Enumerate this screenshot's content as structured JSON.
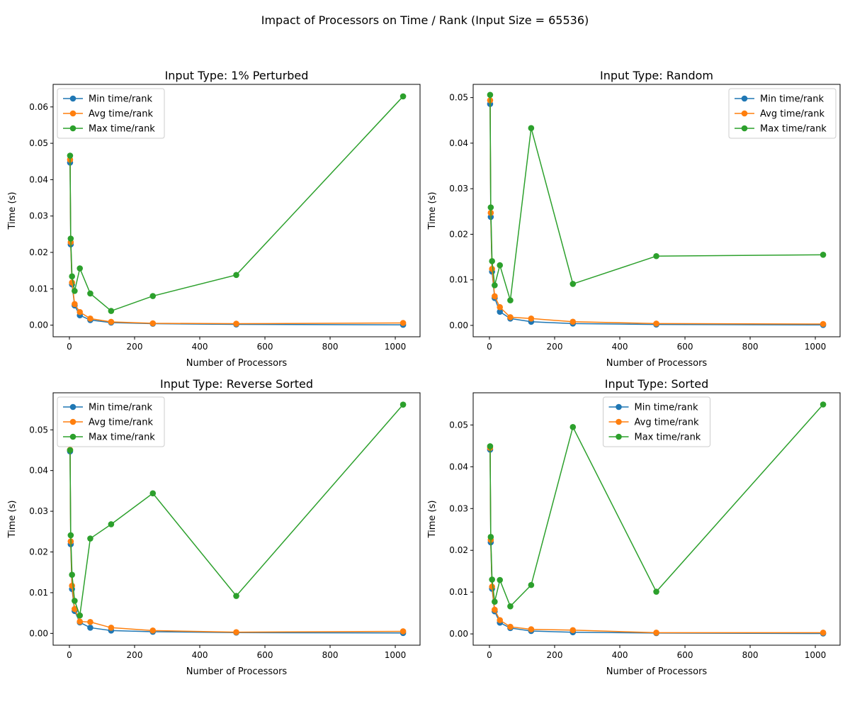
{
  "figure": {
    "suptitle": "Impact of Processors on Time / Rank (Input Size = 65536)"
  },
  "colors": {
    "min": "#1f77b4",
    "avg": "#ff7f0e",
    "max": "#2ca02c"
  },
  "chart_data": [
    {
      "type": "line",
      "title": "Input Type: 1% Perturbed",
      "xlabel": "Number of Processors",
      "ylabel": "Time (s)",
      "x": [
        2,
        4,
        8,
        16,
        32,
        64,
        128,
        256,
        512,
        1024
      ],
      "xlim": [
        -50,
        1076
      ],
      "ylim": [
        -0.0032,
        0.0662
      ],
      "xticks": [
        0,
        200,
        400,
        600,
        800,
        1000
      ],
      "yticks": [
        0.0,
        0.01,
        0.02,
        0.03,
        0.04,
        0.05,
        0.06
      ],
      "ytick_labels": [
        "0.00",
        "0.01",
        "0.02",
        "0.03",
        "0.04",
        "0.05",
        "0.06"
      ],
      "legend_position": "upper-left",
      "series": [
        {
          "name": "Min time/rank",
          "color": "#1f77b4",
          "values": [
            0.0447,
            0.0222,
            0.0112,
            0.0054,
            0.0027,
            0.0014,
            0.0007,
            0.0004,
            0.0002,
            0.0001
          ]
        },
        {
          "name": "Avg time/rank",
          "color": "#ff7f0e",
          "values": [
            0.0455,
            0.0228,
            0.0117,
            0.0058,
            0.0036,
            0.0018,
            0.0009,
            0.0005,
            0.0004,
            0.0006
          ]
        },
        {
          "name": "Max time/rank",
          "color": "#2ca02c",
          "values": [
            0.0466,
            0.0238,
            0.0134,
            0.0094,
            0.0156,
            0.0087,
            0.0039,
            0.008,
            0.0138,
            0.0629
          ]
        }
      ]
    },
    {
      "type": "line",
      "title": "Input Type: Random",
      "xlabel": "Number of Processors",
      "ylabel": "Time (s)",
      "x": [
        2,
        4,
        8,
        16,
        32,
        64,
        128,
        256,
        512,
        1024
      ],
      "xlim": [
        -50,
        1076
      ],
      "ylim": [
        -0.0025,
        0.0529
      ],
      "xticks": [
        0,
        200,
        400,
        600,
        800,
        1000
      ],
      "yticks": [
        0.0,
        0.01,
        0.02,
        0.03,
        0.04,
        0.05
      ],
      "ytick_labels": [
        "0.00",
        "0.01",
        "0.02",
        "0.03",
        "0.04",
        "0.05"
      ],
      "legend_position": "upper-right",
      "series": [
        {
          "name": "Min time/rank",
          "color": "#1f77b4",
          "values": [
            0.0486,
            0.0238,
            0.0118,
            0.006,
            0.003,
            0.0015,
            0.0008,
            0.0004,
            0.0002,
            0.0001
          ]
        },
        {
          "name": "Avg time/rank",
          "color": "#ff7f0e",
          "values": [
            0.0494,
            0.0247,
            0.0124,
            0.0064,
            0.004,
            0.0018,
            0.0015,
            0.0008,
            0.0004,
            0.0003
          ]
        },
        {
          "name": "Max time/rank",
          "color": "#2ca02c",
          "values": [
            0.0506,
            0.0259,
            0.0141,
            0.0088,
            0.0132,
            0.0055,
            0.0433,
            0.0091,
            0.0152,
            0.0155
          ]
        }
      ]
    },
    {
      "type": "line",
      "title": "Input Type: Reverse Sorted",
      "xlabel": "Number of Processors",
      "ylabel": "Time (s)",
      "x": [
        2,
        4,
        8,
        16,
        32,
        64,
        128,
        256,
        512,
        1024
      ],
      "xlim": [
        -50,
        1076
      ],
      "ylim": [
        -0.0029,
        0.0591
      ],
      "xticks": [
        0,
        200,
        400,
        600,
        800,
        1000
      ],
      "yticks": [
        0.0,
        0.01,
        0.02,
        0.03,
        0.04,
        0.05
      ],
      "ytick_labels": [
        "0.00",
        "0.01",
        "0.02",
        "0.03",
        "0.04",
        "0.05"
      ],
      "legend_position": "upper-left",
      "series": [
        {
          "name": "Min time/rank",
          "color": "#1f77b4",
          "values": [
            0.0447,
            0.0219,
            0.0109,
            0.0055,
            0.0027,
            0.0014,
            0.0007,
            0.0004,
            0.0002,
            0.0001
          ]
        },
        {
          "name": "Avg time/rank",
          "color": "#ff7f0e",
          "values": [
            0.0451,
            0.0226,
            0.0117,
            0.006,
            0.0029,
            0.0028,
            0.0014,
            0.0007,
            0.0003,
            0.0005
          ]
        },
        {
          "name": "Max time/rank",
          "color": "#2ca02c",
          "values": [
            0.045,
            0.0241,
            0.0144,
            0.008,
            0.0044,
            0.0233,
            0.0268,
            0.0344,
            0.0092,
            0.0562
          ]
        }
      ]
    },
    {
      "type": "line",
      "title": "Input Type: Sorted",
      "xlabel": "Number of Processors",
      "ylabel": "Time (s)",
      "x": [
        2,
        4,
        8,
        16,
        32,
        64,
        128,
        256,
        512,
        1024
      ],
      "xlim": [
        -50,
        1076
      ],
      "ylim": [
        -0.0027,
        0.0577
      ],
      "xticks": [
        0,
        200,
        400,
        600,
        800,
        1000
      ],
      "yticks": [
        0.0,
        0.01,
        0.02,
        0.03,
        0.04,
        0.05
      ],
      "ytick_labels": [
        "0.00",
        "0.01",
        "0.02",
        "0.03",
        "0.04",
        "0.05"
      ],
      "legend_position": "upper-center",
      "series": [
        {
          "name": "Min time/rank",
          "color": "#1f77b4",
          "values": [
            0.0441,
            0.0219,
            0.0108,
            0.0054,
            0.0027,
            0.0014,
            0.0007,
            0.0004,
            0.0002,
            0.0001
          ]
        },
        {
          "name": "Avg time/rank",
          "color": "#ff7f0e",
          "values": [
            0.0445,
            0.0225,
            0.0113,
            0.0058,
            0.0033,
            0.0017,
            0.0011,
            0.0009,
            0.0003,
            0.0003
          ]
        },
        {
          "name": "Max time/rank",
          "color": "#2ca02c",
          "values": [
            0.0449,
            0.0232,
            0.013,
            0.0077,
            0.0129,
            0.0066,
            0.0117,
            0.0495,
            0.0101,
            0.0549
          ]
        }
      ]
    }
  ]
}
